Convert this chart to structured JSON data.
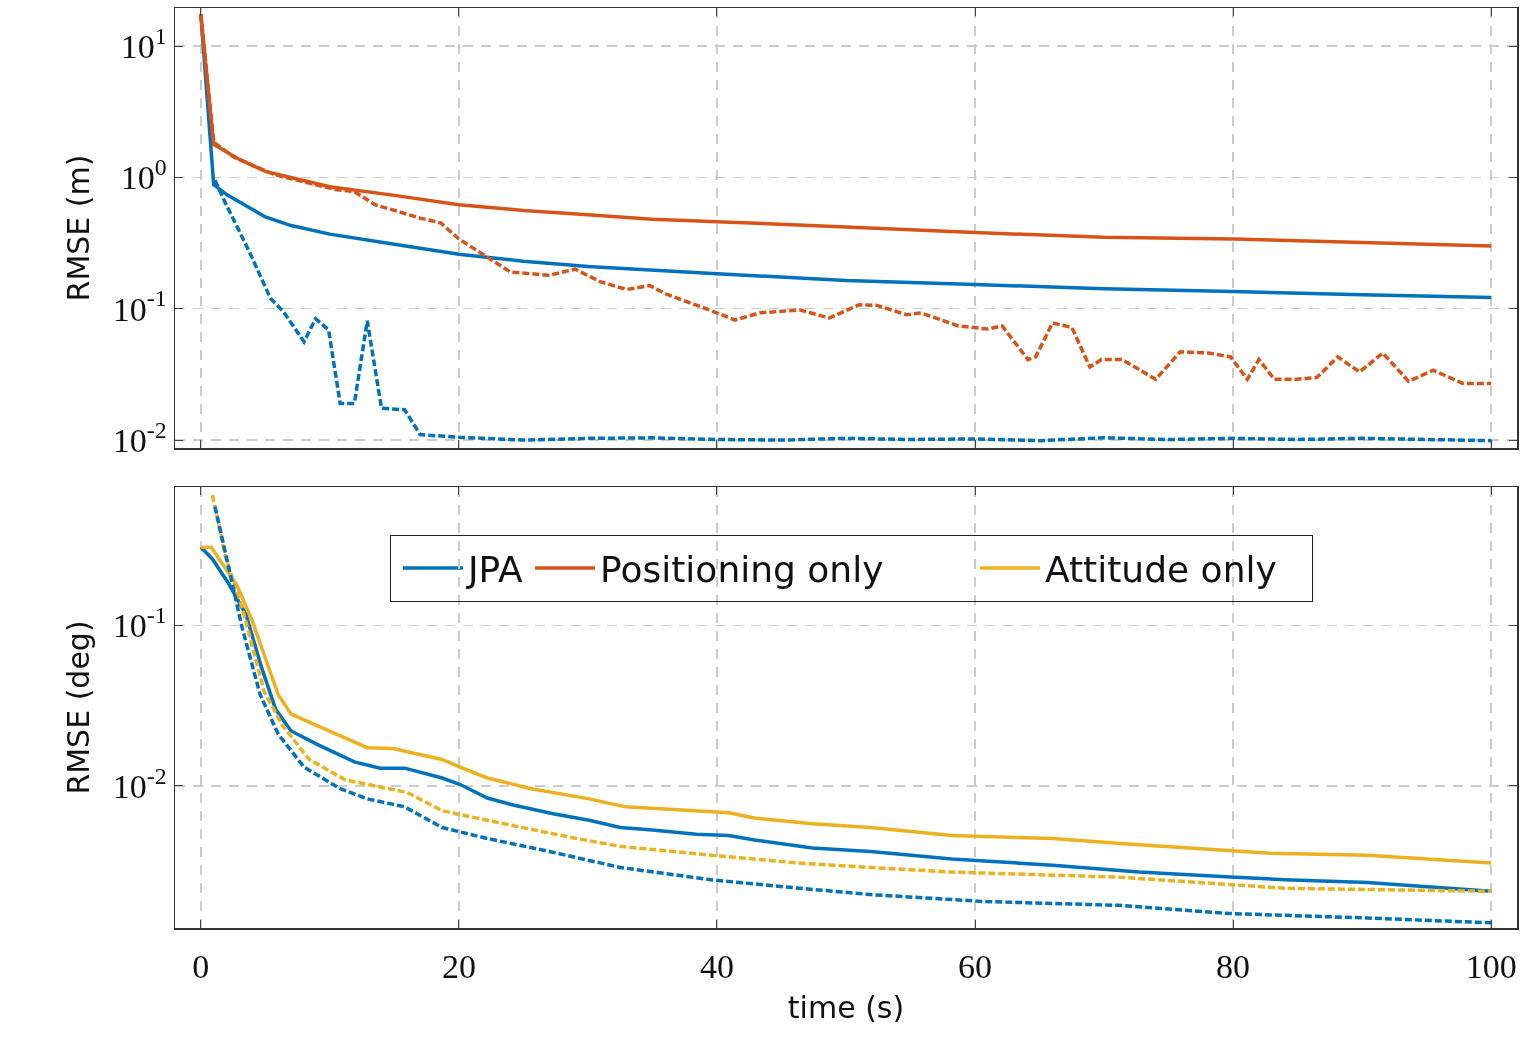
{
  "chart_data": [
    {
      "type": "line",
      "ylabel": "RMSE (m)",
      "log": "y",
      "grid": true,
      "legend": "bottom",
      "tick_labels": "y",
      "marker": "none",
      "xlim": [
        -2,
        102
      ],
      "xticks": [
        0,
        20,
        40,
        60,
        80,
        100
      ],
      "ylim": [
        0.0087,
        19.5
      ],
      "yticks": [
        {
          "value": 10,
          "label": "10$^{1}$"
        },
        {
          "value": 1,
          "label": "10$^{0}$"
        },
        {
          "value": 0.1,
          "label": "10$^{-1}$"
        },
        {
          "value": 0.01,
          "label": "10$^{-2}$"
        }
      ],
      "series": [
        {
          "name": "JPA",
          "color": "#0072bd",
          "line_style": "solid",
          "x": [
            0,
            1,
            2,
            5,
            7,
            10,
            15,
            20,
            25,
            30,
            40,
            50,
            60,
            70,
            80,
            90,
            100
          ],
          "values": [
            17.5,
            0.88,
            0.74,
            0.5,
            0.43,
            0.37,
            0.31,
            0.26,
            0.23,
            0.21,
            0.185,
            0.164,
            0.153,
            0.142,
            0.135,
            0.128,
            0.122
          ]
        },
        {
          "name": "Positioning only",
          "color": "#d95319",
          "line_style": "solid",
          "x": [
            0,
            1,
            3,
            5,
            10,
            15,
            20,
            25,
            30,
            35,
            40,
            50,
            60,
            70,
            80,
            90,
            100
          ],
          "values": [
            17.5,
            1.78,
            1.37,
            1.11,
            0.85,
            0.73,
            0.62,
            0.56,
            0.52,
            0.48,
            0.46,
            0.42,
            0.38,
            0.35,
            0.34,
            0.32,
            0.3
          ]
        },
        {
          "color": "#0072bd",
          "line_style": "dashed",
          "x": [
            1.1,
            1.9,
            3.7,
            5.4,
            6.4,
            8,
            8.9,
            9.9,
            10.8,
            11.9,
            12.9,
            14,
            15.8,
            17,
            20,
            25,
            30,
            35,
            40,
            45,
            50,
            55,
            60,
            65,
            70,
            75,
            80,
            85,
            90,
            95,
            100
          ],
          "values": [
            0.95,
            0.64,
            0.28,
            0.12,
            0.095,
            0.056,
            0.084,
            0.069,
            0.019,
            0.019,
            0.081,
            0.0175,
            0.017,
            0.011,
            0.0105,
            0.01,
            0.0103,
            0.0104,
            0.0101,
            0.01,
            0.0103,
            0.0101,
            0.0102,
            0.0099,
            0.0104,
            0.0101,
            0.0103,
            0.0101,
            0.0103,
            0.0101,
            0.0099
          ]
        },
        {
          "color": "#d95319",
          "line_style": "dashed",
          "x": [
            0,
            1,
            2.6,
            5.7,
            10.4,
            11.9,
            13.5,
            17,
            18.6,
            20,
            22.4,
            24,
            27,
            29,
            31,
            33,
            34.8,
            36,
            39.4,
            41.4,
            43.3,
            46.4,
            48.7,
            51,
            52.4,
            54.7,
            55.8,
            58.7,
            61,
            62.1,
            64.1,
            64.7,
            66,
            67.5,
            68.9,
            69.8,
            71.4,
            74,
            75.9,
            78.1,
            79.8,
            81.1,
            82,
            83.2,
            84.9,
            86.5,
            88.1,
            89.8,
            91.6,
            93.6,
            95.5,
            97.8,
            100
          ],
          "values": [
            17.5,
            1.85,
            1.42,
            1.05,
            0.81,
            0.78,
            0.62,
            0.49,
            0.45,
            0.34,
            0.24,
            0.19,
            0.18,
            0.2,
            0.16,
            0.14,
            0.15,
            0.13,
            0.098,
            0.082,
            0.093,
            0.098,
            0.085,
            0.107,
            0.106,
            0.09,
            0.093,
            0.074,
            0.07,
            0.074,
            0.041,
            0.043,
            0.078,
            0.072,
            0.036,
            0.041,
            0.041,
            0.029,
            0.047,
            0.046,
            0.043,
            0.029,
            0.041,
            0.029,
            0.029,
            0.03,
            0.043,
            0.033,
            0.046,
            0.028,
            0.034,
            0.027,
            0.027
          ]
        }
      ]
    },
    {
      "type": "line",
      "xlabel": "time (s)",
      "ylabel": "RMSE (deg)",
      "log": "y",
      "grid": true,
      "legend": "top",
      "marker": "none",
      "xlim": [
        -2,
        102
      ],
      "xticks": [
        0,
        20,
        40,
        60,
        80,
        100
      ],
      "ylim": [
        0.0013,
        0.73
      ],
      "yticks": [
        {
          "value": 0.1,
          "label": "10$^{-1}$"
        },
        {
          "value": 0.01,
          "label": "10$^{-2}$"
        }
      ],
      "series": [
        {
          "name": "JPA",
          "color": "#0072bd",
          "line_style": "solid",
          "x": [
            0,
            0.9,
            2.2,
            3.5,
            4.7,
            5.8,
            7,
            9.1,
            11.9,
            13.9,
            15.8,
            18.7,
            20.1,
            22.2,
            24.2,
            27.3,
            30.1,
            32.5,
            35,
            38.4,
            40.9,
            42.9,
            47.4,
            51.9,
            58.2,
            66,
            72.7,
            79.8,
            84,
            90.4,
            100
          ],
          "values": [
            0.307,
            0.26,
            0.18,
            0.117,
            0.055,
            0.03,
            0.022,
            0.018,
            0.0141,
            0.0129,
            0.0129,
            0.0112,
            0.0102,
            0.0084,
            0.0076,
            0.0067,
            0.0061,
            0.0055,
            0.0053,
            0.005,
            0.0049,
            0.0046,
            0.0041,
            0.0039,
            0.0035,
            0.0032,
            0.0029,
            0.0027,
            0.0026,
            0.0025,
            0.0022
          ]
        },
        {
          "name": "Attitude only",
          "color": "#edb120",
          "line_style": "solid",
          "x": [
            0,
            0.8,
            2.8,
            4,
            6,
            7,
            9.4,
            12.9,
            14.9,
            18.7,
            20.1,
            22.2,
            25.6,
            30.1,
            32.9,
            37,
            40.9,
            42.9,
            47.4,
            51.9,
            58.2,
            66,
            72.7,
            82.9,
            90.4,
            100
          ],
          "values": [
            0.307,
            0.307,
            0.178,
            0.106,
            0.037,
            0.028,
            0.023,
            0.0173,
            0.0171,
            0.0146,
            0.0131,
            0.0112,
            0.0096,
            0.0083,
            0.0074,
            0.0071,
            0.0068,
            0.0063,
            0.0058,
            0.0055,
            0.0049,
            0.0047,
            0.0043,
            0.0038,
            0.0037,
            0.0033
          ]
        },
        {
          "color": "#edb120",
          "line_style": "dashed",
          "x": [
            0.9,
            1.9,
            3.2,
            4.9,
            6.3,
            8.4,
            11.2,
            14.3,
            16,
            18.7,
            22.2,
            29.1,
            32.5,
            39.5,
            46.4,
            51.9,
            58.2,
            71.1,
            84,
            100
          ],
          "values": [
            0.65,
            0.27,
            0.13,
            0.039,
            0.024,
            0.0146,
            0.0109,
            0.0097,
            0.0091,
            0.007,
            0.0061,
            0.0047,
            0.0042,
            0.0037,
            0.0033,
            0.0031,
            0.0029,
            0.0027,
            0.0023,
            0.0022
          ]
        },
        {
          "color": "#0072bd",
          "line_style": "dashed",
          "x": [
            1.1,
            1.8,
            3.2,
            4.6,
            6,
            8,
            10.8,
            12.9,
            15.8,
            18.7,
            22.2,
            27,
            32.5,
            39.5,
            46.4,
            51.9,
            60.8,
            71.1,
            79.8,
            90.4,
            100
          ],
          "values": [
            0.55,
            0.31,
            0.097,
            0.037,
            0.021,
            0.0131,
            0.0096,
            0.0083,
            0.0074,
            0.0055,
            0.0047,
            0.0039,
            0.0031,
            0.0026,
            0.0023,
            0.0021,
            0.0019,
            0.0018,
            0.0016,
            0.0015,
            0.0014
          ]
        }
      ]
    }
  ]
}
